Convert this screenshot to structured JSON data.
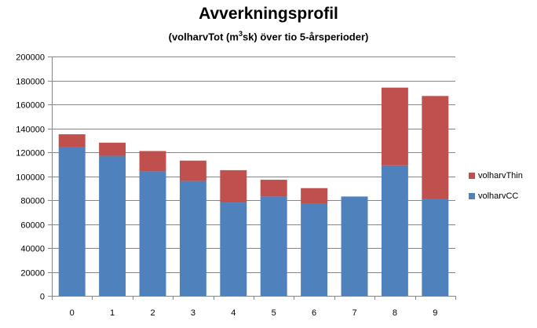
{
  "chart_data": {
    "type": "bar",
    "stacked": true,
    "title": "Avverkningsprofil",
    "subtitle_pre": "(volharvTot (m",
    "subtitle_sup": "3",
    "subtitle_post": "sk) över tio 5-årsperioder)",
    "categories": [
      "0",
      "1",
      "2",
      "3",
      "4",
      "5",
      "6",
      "7",
      "8",
      "9"
    ],
    "series": [
      {
        "name": "volharvCC",
        "color": "#4f81bd",
        "values": [
          124000,
          117000,
          104000,
          96000,
          78000,
          83000,
          77000,
          83000,
          109000,
          81000
        ]
      },
      {
        "name": "volharvThin",
        "color": "#c0504d",
        "values": [
          11000,
          11000,
          17000,
          17000,
          27000,
          14000,
          13000,
          0,
          65000,
          86000
        ]
      }
    ],
    "ylim": [
      0,
      200000
    ],
    "yticks": [
      "0",
      "20000",
      "40000",
      "60000",
      "80000",
      "100000",
      "120000",
      "140000",
      "160000",
      "180000",
      "200000"
    ],
    "grid": true,
    "legend_position": "right",
    "legend_order": [
      "volharvThin",
      "volharvCC"
    ]
  }
}
